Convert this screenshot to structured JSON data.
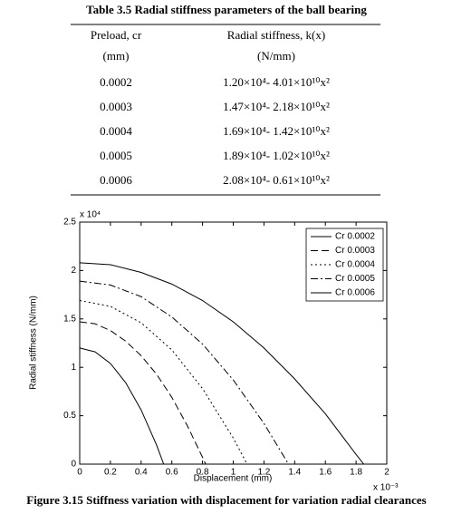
{
  "table": {
    "title": "Table 3.5 Radial stiffness parameters of the ball bearing",
    "header": [
      [
        "Preload, cr",
        "Radial stiffness, k(x)"
      ],
      [
        "(mm)",
        "(N/mm)"
      ]
    ],
    "rows": [
      [
        "0.0002",
        "1.20×10⁴- 4.01×10¹⁰x²"
      ],
      [
        "0.0003",
        "1.47×10⁴- 2.18×10¹⁰x²"
      ],
      [
        "0.0004",
        "1.69×10⁴- 1.42×10¹⁰x²"
      ],
      [
        "0.0005",
        "1.89×10⁴- 1.02×10¹⁰x²"
      ],
      [
        "0.0006",
        "2.08×10⁴- 0.61×10¹⁰x²"
      ]
    ]
  },
  "chart_data": {
    "type": "line",
    "x_label": "Displacement (mm)",
    "y_label": "Radial stiffness (N/mm)",
    "x_multiplier": "x 10⁻³",
    "y_multiplier": "x 10⁴",
    "xlim": [
      0,
      2
    ],
    "xticks": [
      0,
      0.2,
      0.4,
      0.6,
      0.8,
      1,
      1.2,
      1.4,
      1.6,
      1.8,
      2
    ],
    "ylim": [
      0,
      2.5
    ],
    "yticks": [
      0,
      0.5,
      1,
      1.5,
      2,
      2.5
    ],
    "legend": "upper right",
    "series": [
      {
        "name": "Cr 0.0002",
        "color": "#000000",
        "linestyle": "solid",
        "x": [
          0,
          0.1,
          0.2,
          0.3,
          0.4,
          0.5,
          0.547
        ],
        "values": [
          1.2,
          1.16,
          1.04,
          0.84,
          0.56,
          0.2,
          0
        ]
      },
      {
        "name": "Cr 0.0003",
        "color": "#000000",
        "linestyle": "dashed",
        "x": [
          0,
          0.1,
          0.2,
          0.3,
          0.4,
          0.5,
          0.6,
          0.7,
          0.8,
          0.82
        ],
        "values": [
          1.47,
          1.45,
          1.38,
          1.27,
          1.12,
          0.93,
          0.69,
          0.4,
          0.07,
          0
        ]
      },
      {
        "name": "Cr 0.0004",
        "color": "#000000",
        "linestyle": "dotted",
        "x": [
          0,
          0.2,
          0.4,
          0.6,
          0.8,
          1,
          1.09
        ],
        "values": [
          1.69,
          1.63,
          1.46,
          1.18,
          0.78,
          0.27,
          0
        ]
      },
      {
        "name": "Cr 0.0005",
        "color": "#000000",
        "linestyle": "dashdot",
        "x": [
          0,
          0.2,
          0.4,
          0.6,
          0.8,
          1,
          1.2,
          1.36
        ],
        "values": [
          1.89,
          1.85,
          1.73,
          1.52,
          1.24,
          0.87,
          0.42,
          0
        ]
      },
      {
        "name": "Cr 0.0006",
        "color": "#000000",
        "linestyle": "solid",
        "x": [
          0,
          0.2,
          0.4,
          0.6,
          0.8,
          1,
          1.2,
          1.4,
          1.6,
          1.8,
          1.85
        ],
        "values": [
          2.08,
          2.06,
          1.98,
          1.86,
          1.69,
          1.47,
          1.2,
          0.88,
          0.52,
          0.1,
          0
        ]
      }
    ]
  },
  "caption": "Figure 3.15 Stiffness variation with displacement for variation radial clearances"
}
